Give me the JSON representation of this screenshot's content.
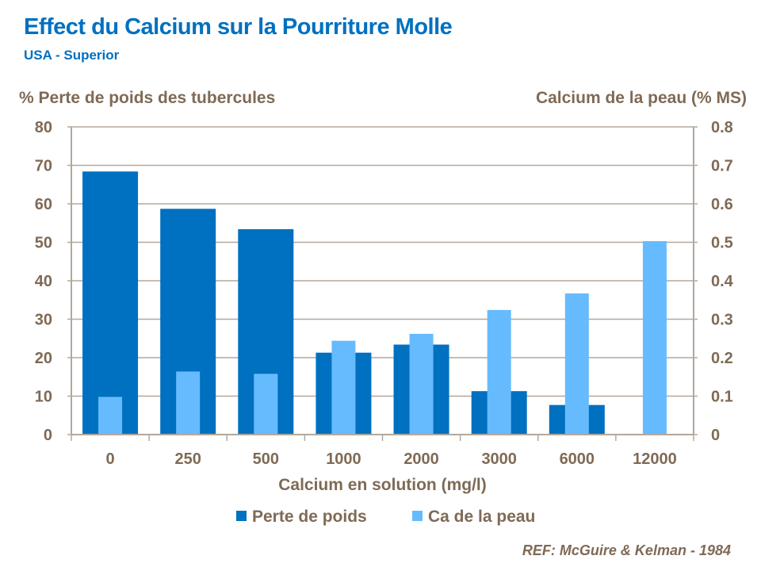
{
  "chart_data": {
    "type": "bar",
    "title": "Effect du Calcium sur la Pourriture Molle",
    "subtitle": "USA - Superior",
    "ylabel_left": "% Perte de poids des tubercules",
    "ylabel_right": "Calcium de la peau (% MS)",
    "xlabel": "Calcium en solution (mg/l)",
    "categories": [
      "0",
      "250",
      "500",
      "1000",
      "2000",
      "3000",
      "6000",
      "12000"
    ],
    "ylim_left": [
      0,
      80
    ],
    "ylim_right": [
      0,
      0.8
    ],
    "yticks_left": [
      "0",
      "10",
      "20",
      "30",
      "40",
      "50",
      "60",
      "70",
      "80"
    ],
    "yticks_right": [
      "0",
      "0.1",
      "0.2",
      "0.3",
      "0.4",
      "0.5",
      "0.6",
      "0.7",
      "0.8"
    ],
    "grid": true,
    "legend_position": "bottom",
    "series": [
      {
        "name": "Perte de poids",
        "axis": "left",
        "color": "#0070C0",
        "values": [
          68.4,
          58.7,
          53.4,
          21.3,
          23.4,
          11.3,
          7.7,
          0
        ]
      },
      {
        "name": "Ca de la peau",
        "axis": "right",
        "color": "#66BBFF",
        "values": [
          0.098,
          0.164,
          0.158,
          0.244,
          0.262,
          0.324,
          0.367,
          0.503
        ]
      }
    ],
    "annotation": "REF: McGuire & Kelman - 1984"
  }
}
